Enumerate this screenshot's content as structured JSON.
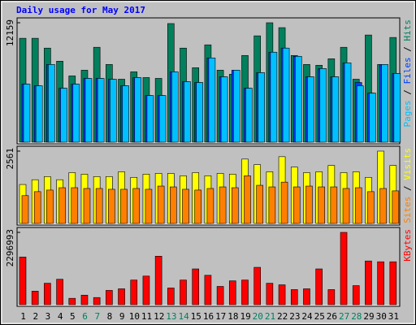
{
  "chart_data": [
    {
      "type": "bar",
      "title": "Daily usage for May 2017",
      "ylim": [
        0,
        12159
      ],
      "yticks": [
        12159
      ],
      "legend_separator": " / ",
      "series": [
        {
          "name": "Hits",
          "color": "#00805c",
          "values": [
            10577,
            10577,
            9577,
            8245,
            6746,
            7329,
            9661,
            7912,
            6413,
            7162,
            6579,
            6496,
            12076,
            9577,
            7578,
            9910,
            7329,
            6912,
            8828,
            10826,
            12159,
            11659,
            8828,
            7912,
            7828,
            8494,
            9661,
            6413,
            10910,
            7912,
            10660
          ]
        },
        {
          "name": "Files",
          "color": "#0040ff",
          "values": [
            5913,
            5746,
            7912,
            5496,
            5913,
            6496,
            6496,
            6413,
            5746,
            6579,
            4747,
            4747,
            7162,
            6163,
            6079,
            8578,
            6662,
            7329,
            5496,
            7079,
            9161,
            9577,
            8744,
            6662,
            7495,
            6662,
            8078,
            6079,
            4997,
            7912,
            6996
          ]
        },
        {
          "name": "Pages",
          "color": "#00c0ff",
          "values": [
            5913,
            5746,
            7912,
            5496,
            5913,
            6496,
            6496,
            6413,
            5746,
            6579,
            4747,
            4747,
            7162,
            6163,
            6079,
            8578,
            6662,
            7329,
            5496,
            7079,
            9161,
            9577,
            8744,
            6662,
            7495,
            6662,
            8078,
            5746,
            4997,
            7912,
            6996
          ]
        }
      ]
    },
    {
      "type": "bar",
      "ylim": [
        0,
        2561
      ],
      "yticks": [
        2561
      ],
      "legend_separator": " / ",
      "series": [
        {
          "name": "Visits",
          "color": "#ffff00",
          "values": [
            1379,
            1548,
            1660,
            1548,
            1801,
            1745,
            1660,
            1660,
            1829,
            1632,
            1745,
            1773,
            1773,
            1688,
            1801,
            1688,
            1773,
            1745,
            2279,
            2082,
            1829,
            2364,
            1998,
            1801,
            1829,
            2054,
            1801,
            1829,
            1632,
            2561,
            2054
          ]
        },
        {
          "name": "Sites",
          "color": "#ff8000",
          "values": [
            985,
            1126,
            1182,
            1266,
            1266,
            1238,
            1238,
            1210,
            1210,
            1238,
            1210,
            1323,
            1294,
            1210,
            1182,
            1238,
            1294,
            1266,
            1688,
            1351,
            1294,
            1463,
            1294,
            1323,
            1294,
            1294,
            1238,
            1266,
            1126,
            1238,
            1154
          ]
        }
      ]
    },
    {
      "type": "bar",
      "ylim": [
        0,
        2296993
      ],
      "yticks": [
        2296993
      ],
      "categories": [
        "1",
        "2",
        "3",
        "4",
        "5",
        "6",
        "7",
        "8",
        "9",
        "10",
        "11",
        "12",
        "13",
        "14",
        "15",
        "16",
        "17",
        "18",
        "19",
        "20",
        "21",
        "22",
        "23",
        "24",
        "25",
        "26",
        "27",
        "28",
        "29",
        "30",
        "31"
      ],
      "category_colors": [
        "#000000",
        "#000000",
        "#000000",
        "#000000",
        "#000000",
        "#00805c",
        "#00805c",
        "#000000",
        "#000000",
        "#000000",
        "#000000",
        "#000000",
        "#00805c",
        "#00805c",
        "#000000",
        "#000000",
        "#000000",
        "#000000",
        "#000000",
        "#00805c",
        "#00805c",
        "#000000",
        "#000000",
        "#000000",
        "#000000",
        "#000000",
        "#00805c",
        "#00805c",
        "#000000",
        "#000000",
        "#000000"
      ],
      "series": [
        {
          "name": "KBytes",
          "color": "#ff0000",
          "values": [
            1514520,
            429114,
            681534,
            807744,
            201936,
            302904,
            227178,
            454356,
            504840,
            782502,
            908712,
            1539762,
            530082,
            782502,
            1135890,
            933954,
            580566,
            757260,
            782502,
            1186374,
            681534,
            631050,
            479598,
            504840,
            1135890,
            479598,
            2296993,
            605808,
            1388310,
            1363068,
            1363068
          ]
        }
      ]
    }
  ]
}
